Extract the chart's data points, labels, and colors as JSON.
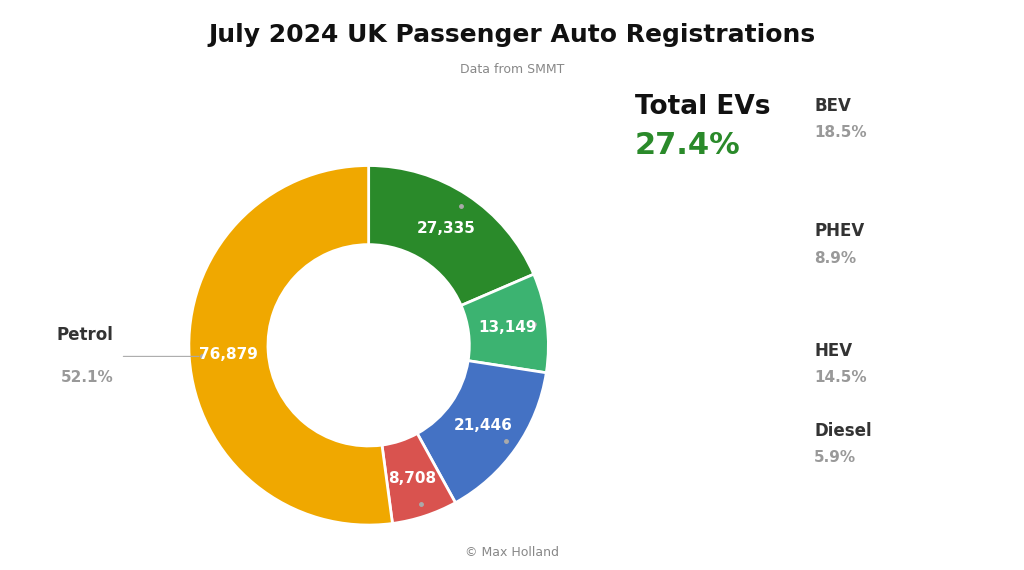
{
  "title": "July 2024 UK Passenger Auto Registrations",
  "subtitle": "Data from SMMT",
  "copyright": "© Max Holland",
  "segments": [
    {
      "label": "BEV",
      "value": 27335,
      "pct": "18.5%",
      "color": "#2a8a2a"
    },
    {
      "label": "PHEV",
      "value": 13149,
      "pct": "8.9%",
      "color": "#3cb371"
    },
    {
      "label": "HEV",
      "value": 21446,
      "pct": "14.5%",
      "color": "#4472c4"
    },
    {
      "label": "Diesel",
      "value": 8708,
      "pct": "5.9%",
      "color": "#d9534f"
    },
    {
      "label": "Petrol",
      "value": 76879,
      "pct": "52.1%",
      "color": "#f0a800"
    }
  ],
  "total_ev_pct": "27.4%",
  "total_ev_label": "Total EVs",
  "background_color": "#ffffff",
  "title_fontsize": 18,
  "subtitle_fontsize": 9,
  "donut_width": 0.44,
  "start_angle": 90,
  "line_color": "#aaaaaa",
  "label_color": "#333333",
  "pct_color": "#999999",
  "white": "#ffffff",
  "green_color": "#2a8a2a"
}
